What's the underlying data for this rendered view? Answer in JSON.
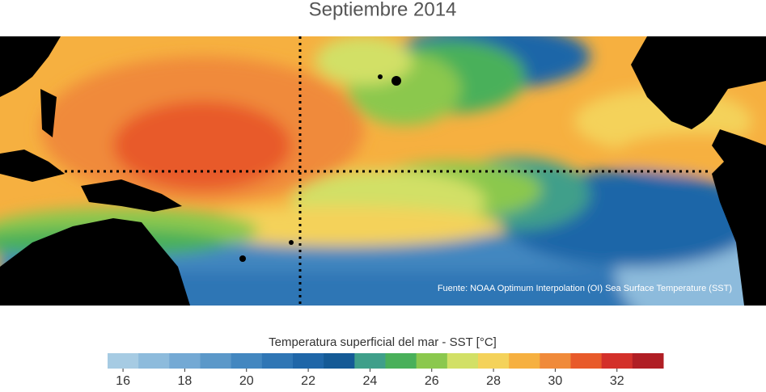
{
  "title": "Septiembre 2014",
  "source": "Fuente: NOAA Optimum Interpolation (OI) Sea Surface Temperature (SST)",
  "colorbar": {
    "label": "Temperatura superficial del mar - SST  [°C]",
    "lim": [
      15.5,
      33.5
    ],
    "ticks": [
      16,
      18,
      20,
      22,
      24,
      26,
      28,
      30,
      32
    ],
    "colors": [
      "#a6cbe3",
      "#8dbbdc",
      "#74a9d4",
      "#5b98c9",
      "#4387c0",
      "#2f76b5",
      "#1f66a8",
      "#145a96",
      "#3f9f8a",
      "#49b05a",
      "#8bc84e",
      "#d2e066",
      "#f4d25a",
      "#f6b040",
      "#f08a3a",
      "#e85a2a",
      "#d3302a",
      "#b01e24"
    ]
  }
}
